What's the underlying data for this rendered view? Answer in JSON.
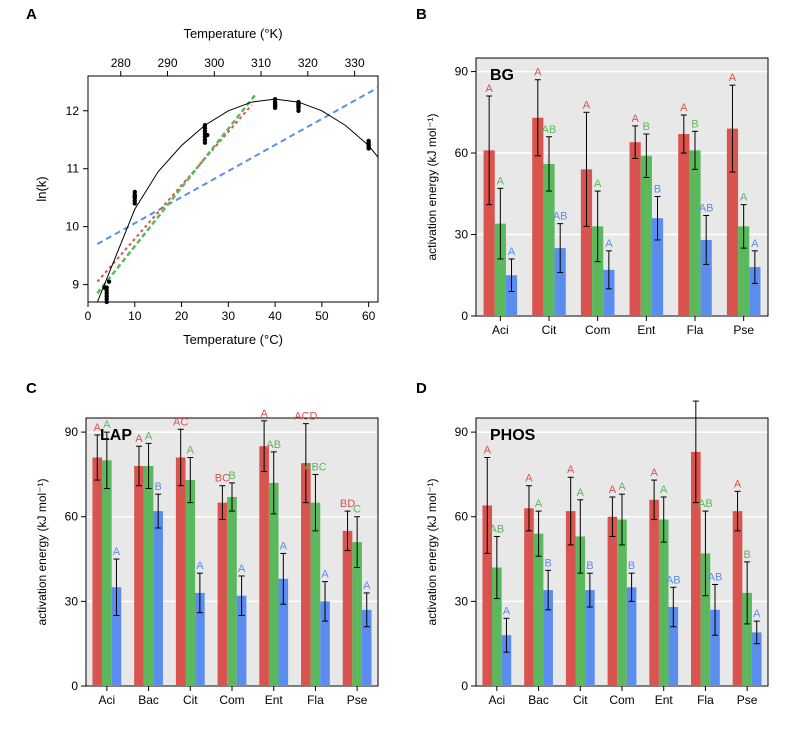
{
  "colors": {
    "red": "#d9534f",
    "green": "#5cb85c",
    "blue": "#5b8def",
    "black": "#000000",
    "panelbg": "#e8e8e8",
    "grid": "#ffffff",
    "axis": "#000000",
    "text": "#000000"
  },
  "labels": {
    "A": "A",
    "B": "B",
    "C": "C",
    "D": "D"
  },
  "panelA": {
    "title": "A",
    "xlabel": "Temperature (°C)",
    "ylabel": "ln(k)",
    "toplabel": "Temperature (°K)",
    "xlim": [
      0,
      62
    ],
    "ylim": [
      8.7,
      12.6
    ],
    "topxlim": [
      273,
      335
    ],
    "xticks": [
      0,
      10,
      20,
      30,
      40,
      50,
      60
    ],
    "yticks": [
      9,
      10,
      11,
      12
    ],
    "topticks": [
      280,
      290,
      300,
      310,
      320,
      330
    ],
    "points": [
      [
        4,
        8.8
      ],
      [
        4,
        8.85
      ],
      [
        4,
        8.75
      ],
      [
        4,
        8.9
      ],
      [
        4,
        8.7
      ],
      [
        4,
        8.95
      ],
      [
        4.5,
        9.05
      ],
      [
        3.5,
        8.95
      ],
      [
        10,
        10.45
      ],
      [
        10,
        10.55
      ],
      [
        10,
        10.5
      ],
      [
        10,
        10.6
      ],
      [
        10,
        10.4
      ],
      [
        10,
        10.52
      ],
      [
        25,
        11.55
      ],
      [
        25,
        11.65
      ],
      [
        25,
        11.6
      ],
      [
        25,
        11.7
      ],
      [
        25,
        11.75
      ],
      [
        25,
        11.5
      ],
      [
        25,
        11.45
      ],
      [
        25.5,
        11.58
      ],
      [
        40,
        12.1
      ],
      [
        40,
        12.15
      ],
      [
        40,
        12.05
      ],
      [
        40,
        12.2
      ],
      [
        40,
        12.12
      ],
      [
        40,
        12.08
      ],
      [
        45,
        12.1
      ],
      [
        45,
        12.05
      ],
      [
        45,
        12.15
      ],
      [
        45,
        12.0
      ],
      [
        45,
        12.08
      ],
      [
        45,
        12.12
      ],
      [
        60,
        11.42
      ],
      [
        60,
        11.38
      ],
      [
        60,
        11.45
      ],
      [
        60,
        11.48
      ],
      [
        60,
        11.4
      ],
      [
        60,
        11.35
      ]
    ],
    "curve": [
      [
        2,
        8.7
      ],
      [
        6,
        9.5
      ],
      [
        10,
        10.3
      ],
      [
        15,
        10.95
      ],
      [
        20,
        11.4
      ],
      [
        25,
        11.75
      ],
      [
        30,
        12.0
      ],
      [
        35,
        12.15
      ],
      [
        40,
        12.2
      ],
      [
        45,
        12.15
      ],
      [
        50,
        12.0
      ],
      [
        55,
        11.75
      ],
      [
        60,
        11.4
      ],
      [
        62,
        11.2
      ]
    ],
    "lines": {
      "blue": {
        "color": "#5b8def",
        "dash": "6,4",
        "width": 2,
        "pts": [
          [
            2,
            9.7
          ],
          [
            62,
            12.4
          ]
        ]
      },
      "red": {
        "color": "#d9534f",
        "dash": "3,3",
        "width": 2,
        "pts": [
          [
            2,
            9.05
          ],
          [
            35,
            12.1
          ]
        ]
      },
      "green": {
        "color": "#5cb85c",
        "dash": "5,3",
        "width": 2.5,
        "pts": [
          [
            2,
            8.85
          ],
          [
            36,
            12.3
          ]
        ]
      }
    }
  },
  "groupedCharts": {
    "common": {
      "ylabel": "activation energy (kJ mol⁻¹)",
      "ylim": [
        0,
        95
      ],
      "yticks": [
        0,
        30,
        60,
        90
      ],
      "barcolors": [
        "#d9534f",
        "#5cb85c",
        "#5b8def"
      ],
      "letcolors": [
        "#d9534f",
        "#5cb85c",
        "#5b8def"
      ],
      "barwidth": 0.23,
      "gap": 0.05,
      "label_fontsize": 12,
      "letter_fontsize": 11,
      "bg": "#e8e8e8",
      "grid": "#ffffff"
    },
    "B": {
      "title": "BG",
      "cats": [
        "Aci",
        "Cit",
        "Com",
        "Ent",
        "Fla",
        "Pse"
      ],
      "red": {
        "v": [
          61,
          73,
          54,
          64,
          67,
          69
        ],
        "e": [
          20,
          14,
          21,
          6,
          7,
          16
        ],
        "let": [
          "A",
          "A",
          "A",
          "A",
          "A",
          "A"
        ]
      },
      "green": {
        "v": [
          34,
          56,
          33,
          59,
          61,
          33
        ],
        "e": [
          13,
          10,
          13,
          8,
          7,
          8
        ],
        "let": [
          "A",
          "AB",
          "A",
          "B",
          "B",
          "A"
        ]
      },
      "blue": {
        "v": [
          15,
          25,
          17,
          36,
          28,
          18
        ],
        "e": [
          6,
          9,
          7,
          8,
          9,
          6
        ],
        "let": [
          "A",
          "AB",
          "A",
          "B",
          "AB",
          "A"
        ]
      }
    },
    "C": {
      "title": "LAP",
      "cats": [
        "Aci",
        "Bac",
        "Cit",
        "Com",
        "Ent",
        "Fla",
        "Pse"
      ],
      "red": {
        "v": [
          81,
          78,
          81,
          65,
          85,
          79,
          55
        ],
        "e": [
          8,
          7,
          10,
          6,
          9,
          14,
          7
        ],
        "let": [
          "A",
          "A",
          "AC",
          "BC",
          "A",
          "ACD",
          "BD"
        ]
      },
      "green": {
        "v": [
          80,
          78,
          73,
          67,
          72,
          65,
          51
        ],
        "e": [
          10,
          8,
          8,
          5,
          11,
          10,
          9
        ],
        "let": [
          "A",
          "A",
          "A",
          "B",
          "AB",
          "ABC",
          "C"
        ]
      },
      "blue": {
        "v": [
          35,
          62,
          33,
          32,
          38,
          30,
          27
        ],
        "e": [
          10,
          6,
          7,
          7,
          9,
          7,
          6
        ],
        "let": [
          "A",
          "B",
          "A",
          "A",
          "A",
          "A",
          "A"
        ]
      }
    },
    "D": {
      "title": "PHOS",
      "cats": [
        "Aci",
        "Bac",
        "Cit",
        "Com",
        "Ent",
        "Fla",
        "Pse"
      ],
      "red": {
        "v": [
          64,
          63,
          62,
          60,
          66,
          83,
          62
        ],
        "e": [
          17,
          8,
          12,
          7,
          7,
          18,
          7
        ],
        "let": [
          "A",
          "A",
          "A",
          "A",
          "A",
          "A",
          "A"
        ]
      },
      "green": {
        "v": [
          42,
          54,
          53,
          59,
          59,
          47,
          33
        ],
        "e": [
          11,
          8,
          13,
          9,
          8,
          15,
          11
        ],
        "let": [
          "AB",
          "A",
          "A",
          "A",
          "A",
          "AB",
          "B"
        ]
      },
      "blue": {
        "v": [
          18,
          34,
          34,
          35,
          28,
          27,
          19
        ],
        "e": [
          6,
          7,
          6,
          5,
          7,
          9,
          4
        ],
        "let": [
          "A",
          "B",
          "B",
          "B",
          "AB",
          "AB",
          "A"
        ]
      }
    }
  }
}
